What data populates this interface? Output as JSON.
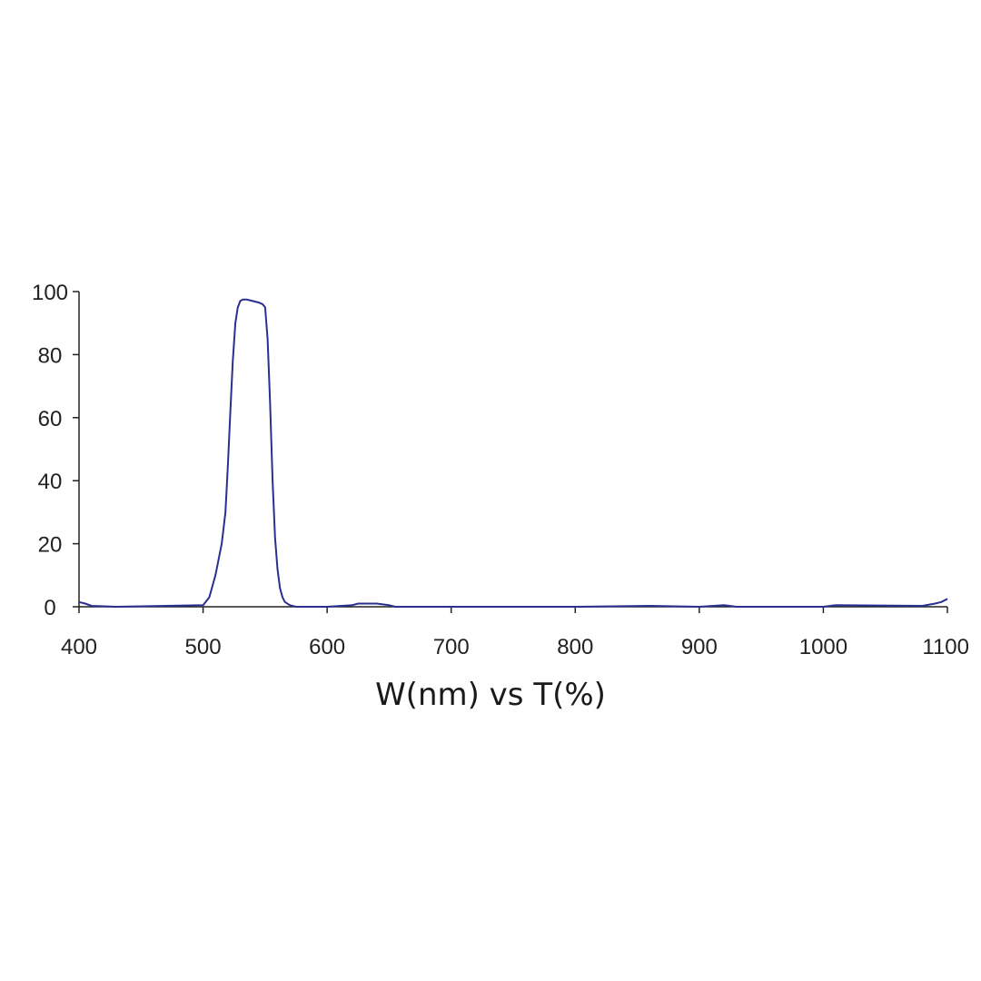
{
  "chart_data": {
    "type": "line",
    "title": "",
    "xlabel": "W(nm) vs T(%)",
    "ylabel": "",
    "xlim": [
      400,
      1100
    ],
    "ylim": [
      0,
      100
    ],
    "x_ticks": [
      400,
      500,
      600,
      700,
      800,
      900,
      1000,
      1100
    ],
    "y_ticks": [
      0,
      20,
      40,
      60,
      80,
      100
    ],
    "x_tick_labels": [
      "400",
      "500",
      "600",
      "700",
      "800",
      "900",
      "1000",
      "1100"
    ],
    "y_tick_labels": [
      "0",
      "20",
      "40",
      "60",
      "80",
      "100"
    ],
    "grid": false,
    "legend": "none",
    "line_color": "#2b2f8f",
    "series": [
      {
        "x": [
          400,
          405,
          410,
          430,
          470,
          500,
          505,
          510,
          515,
          518,
          520,
          522,
          524,
          526,
          528,
          530,
          532,
          535,
          540,
          545,
          548,
          550,
          552,
          554,
          556,
          558,
          560,
          562,
          564,
          566,
          570,
          575,
          580,
          600,
          620,
          625,
          630,
          640,
          650,
          655,
          700,
          800,
          860,
          900,
          920,
          930,
          1000,
          1010,
          1080,
          1090,
          1095,
          1100
        ],
        "y": [
          1.5,
          1,
          0.3,
          0,
          0.3,
          0.5,
          3,
          10,
          20,
          30,
          45,
          62,
          78,
          90,
          95,
          97,
          97.5,
          97.5,
          97,
          96.5,
          96,
          95,
          85,
          65,
          40,
          22,
          12,
          6,
          3,
          1.5,
          0.5,
          0,
          0,
          0,
          0.5,
          1,
          1,
          1,
          0.5,
          0,
          0,
          0,
          0.3,
          0,
          0.5,
          0,
          0,
          0.5,
          0.3,
          1,
          1.5,
          2.5
        ]
      }
    ]
  }
}
